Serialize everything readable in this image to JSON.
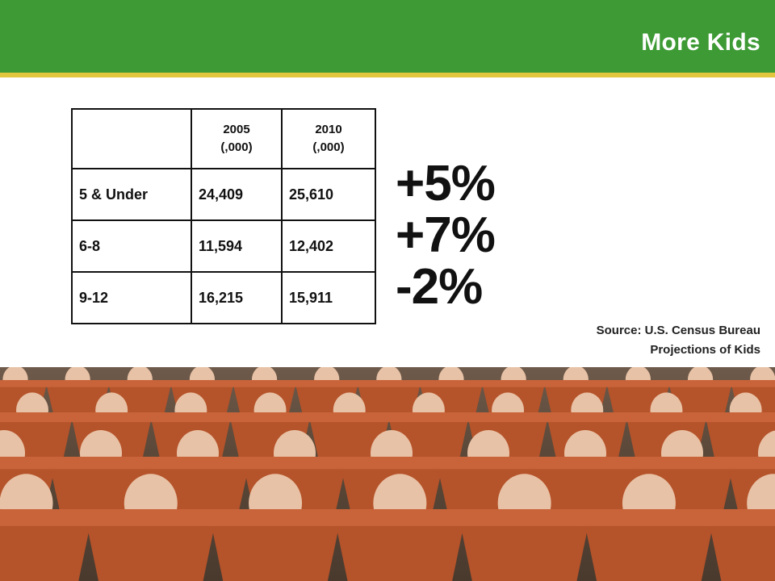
{
  "header": {
    "title": "More Kids"
  },
  "colors": {
    "header_bg": "#3d9a34",
    "header_rule": "#e2c63d",
    "pot": "#b5532a",
    "pot_rim": "#c9643a",
    "skin": "#e8c2a6"
  },
  "chart_data": {
    "type": "table",
    "columns": [
      {
        "label": "",
        "unit": ""
      },
      {
        "label": "2005",
        "unit": "(,000)"
      },
      {
        "label": "2010",
        "unit": "(,000)"
      }
    ],
    "rows": [
      {
        "label": "5 & Under",
        "values": [
          "24,409",
          "25,610"
        ],
        "change": "+5%"
      },
      {
        "label": "6-8",
        "values": [
          "11,594",
          "12,402"
        ],
        "change": "+7%"
      },
      {
        "label": "9-12",
        "values": [
          "16,215",
          "15,911"
        ],
        "change": "-2%"
      }
    ]
  },
  "source": {
    "line1": "Source: U.S. Census Bureau",
    "line2": "Projections of Kids"
  },
  "photo": {
    "icon": "babies-in-flower-pots-photo"
  }
}
